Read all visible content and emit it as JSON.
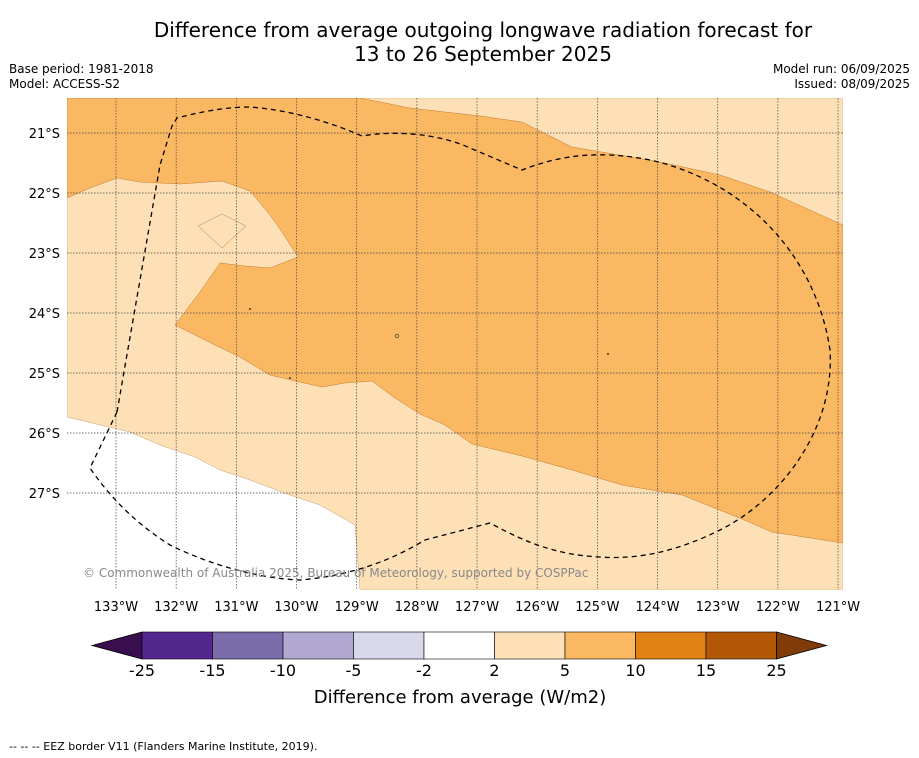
{
  "header": {
    "title_line1": "Difference from average outgoing longwave radiation forecast for",
    "title_line2": "13 to 26 September 2025",
    "base_period": "Base period: 1981-2018",
    "model": "Model: ACCESS-S2",
    "model_run": "Model run: 06/09/2025",
    "issued": "Issued: 08/09/2025"
  },
  "map": {
    "lat_labels": [
      "21°S",
      "22°S",
      "23°S",
      "24°S",
      "25°S",
      "26°S",
      "27°S"
    ],
    "lon_labels": [
      "133°W",
      "132°W",
      "131°W",
      "130°W",
      "129°W",
      "128°W",
      "127°W",
      "126°W",
      "125°W",
      "124°W",
      "123°W",
      "122°W",
      "121°W"
    ],
    "copyright": "© Commonwealth of Australia 2025, Bureau of Meteorology, supported by COSPPac",
    "colors": {
      "band_2_5": "#fde0b6",
      "band_5_10": "#fbb862",
      "band_neutral": "#ffffff"
    }
  },
  "colorbar": {
    "label": "Difference from average (W/m2)",
    "ticks": [
      "-25",
      "-15",
      "-10",
      "-5",
      "-2",
      "2",
      "5",
      "10",
      "15",
      "25"
    ],
    "colors": [
      "#3b0f4f",
      "#54278f",
      "#7b6cac",
      "#b0a8d0",
      "#d9d9ec",
      "#ffffff",
      "#fde0b6",
      "#fbb862",
      "#e08214",
      "#b35806",
      "#7f3b08"
    ]
  },
  "footnote": "-- -- -- EEZ border V11 (Flanders Marine Institute, 2019)."
}
